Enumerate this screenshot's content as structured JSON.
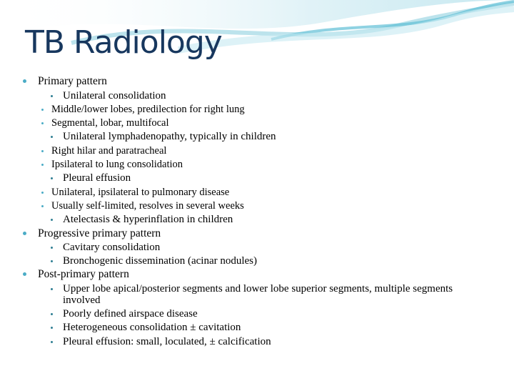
{
  "title": "TB Radiology",
  "bullets": [
    {
      "text": "Primary pattern",
      "children": [
        {
          "text": "Unilateral consolidation",
          "children": [
            {
              "text": "Middle/lower lobes, predilection for right lung"
            },
            {
              "text": "Segmental, lobar, multifocal"
            }
          ]
        },
        {
          "text": "Unilateral lymphadenopathy, typically in children",
          "children": [
            {
              "text": "Right hilar and paratracheal"
            },
            {
              "text": "Ipsilateral to lung consolidation"
            }
          ]
        },
        {
          "text": "Pleural effusion",
          "children": [
            {
              "text": "Unilateral, ipsilateral to pulmonary disease"
            },
            {
              "text": "Usually self-limited, resolves in several weeks"
            }
          ]
        },
        {
          "text": "Atelectasis & hyperinflation in children"
        }
      ]
    },
    {
      "text": "Progressive primary pattern",
      "children": [
        {
          "text": "Cavitary consolidation"
        },
        {
          "text": "Bronchogenic dissemination (acinar nodules)"
        }
      ]
    },
    {
      "text": "Post-primary pattern",
      "children": [
        {
          "text": "Upper lobe apical/posterior segments and lower lobe superior segments, multiple segments involved"
        },
        {
          "text": "Poorly defined airspace disease"
        },
        {
          "text": "Heterogeneous consolidation ± cavitation"
        },
        {
          "text": "Pleural effusion: small, loculated, ± calcification"
        }
      ]
    }
  ]
}
